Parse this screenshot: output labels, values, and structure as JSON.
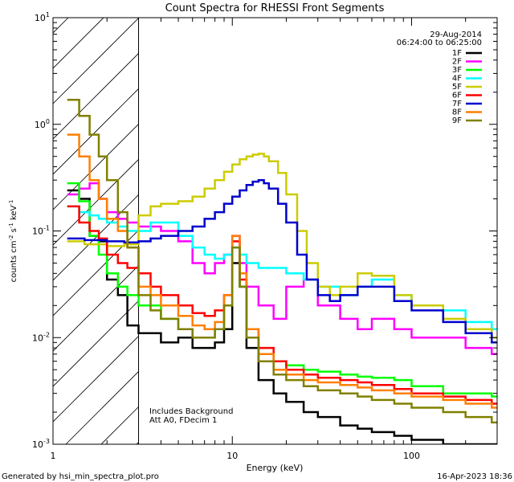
{
  "chart_data": {
    "type": "line",
    "title": "Count Spectra for RHESSI Front Segments",
    "xlabel": "Energy (keV)",
    "ylabel": "counts cm-2 s-1 keV-1",
    "xscale": "log",
    "yscale": "log",
    "xlim": [
      1,
      300
    ],
    "ylim": [
      0.001,
      10
    ],
    "x_ticks": [
      {
        "v": 1,
        "label": "1"
      },
      {
        "v": 10,
        "label": "10"
      },
      {
        "v": 100,
        "label": "100"
      }
    ],
    "y_ticks": [
      {
        "v": 0.001,
        "base": "10",
        "exp": "-3"
      },
      {
        "v": 0.01,
        "base": "10",
        "exp": "-2"
      },
      {
        "v": 0.1,
        "base": "10",
        "exp": "-1"
      },
      {
        "v": 1,
        "base": "10",
        "exp": "0"
      },
      {
        "v": 10,
        "base": "10",
        "exp": "1"
      }
    ],
    "date": "29-Aug-2014",
    "time_range": "06:24:00 to 06:25:00",
    "notes": [
      "Includes Background",
      "Att A0, FDecim 1"
    ],
    "excluded_region_keV": [
      1,
      3
    ],
    "series": [
      {
        "name": "1F",
        "color": "#000000",
        "points": [
          [
            1.2,
            0.24
          ],
          [
            1.4,
            0.2
          ],
          [
            1.6,
            0.09
          ],
          [
            1.8,
            0.08
          ],
          [
            2.0,
            0.035
          ],
          [
            2.3,
            0.025
          ],
          [
            2.6,
            0.013
          ],
          [
            3,
            0.011
          ],
          [
            4,
            0.009
          ],
          [
            5,
            0.01
          ],
          [
            6,
            0.008
          ],
          [
            7,
            0.008
          ],
          [
            8,
            0.009
          ],
          [
            9,
            0.012
          ],
          [
            10,
            0.05
          ],
          [
            11,
            0.03
          ],
          [
            12,
            0.008
          ],
          [
            14,
            0.004
          ],
          [
            17,
            0.003
          ],
          [
            20,
            0.0025
          ],
          [
            25,
            0.002
          ],
          [
            30,
            0.0018
          ],
          [
            40,
            0.0015
          ],
          [
            50,
            0.0014
          ],
          [
            60,
            0.0013
          ],
          [
            80,
            0.0012
          ],
          [
            100,
            0.0011
          ],
          [
            150,
            0.001
          ],
          [
            200,
            0.001
          ],
          [
            280,
            0.001
          ]
        ]
      },
      {
        "name": "2F",
        "color": "#ff00ff",
        "points": [
          [
            1.2,
            0.22
          ],
          [
            1.4,
            0.25
          ],
          [
            1.6,
            0.28
          ],
          [
            1.8,
            0.2
          ],
          [
            2.0,
            0.15
          ],
          [
            2.3,
            0.13
          ],
          [
            2.6,
            0.12
          ],
          [
            3,
            0.11
          ],
          [
            3.5,
            0.11
          ],
          [
            4,
            0.1
          ],
          [
            5,
            0.08
          ],
          [
            6,
            0.05
          ],
          [
            7,
            0.04
          ],
          [
            8,
            0.05
          ],
          [
            9,
            0.06
          ],
          [
            10,
            0.09
          ],
          [
            11,
            0.05
          ],
          [
            12,
            0.03
          ],
          [
            14,
            0.02
          ],
          [
            17,
            0.015
          ],
          [
            20,
            0.03
          ],
          [
            25,
            0.035
          ],
          [
            30,
            0.02
          ],
          [
            40,
            0.015
          ],
          [
            50,
            0.012
          ],
          [
            60,
            0.015
          ],
          [
            80,
            0.012
          ],
          [
            100,
            0.01
          ],
          [
            150,
            0.01
          ],
          [
            200,
            0.008
          ],
          [
            280,
            0.007
          ]
        ]
      },
      {
        "name": "3F",
        "color": "#00ff00",
        "points": [
          [
            1.2,
            0.28
          ],
          [
            1.4,
            0.19
          ],
          [
            1.6,
            0.09
          ],
          [
            1.8,
            0.06
          ],
          [
            2.0,
            0.04
          ],
          [
            2.3,
            0.03
          ],
          [
            2.6,
            0.025
          ],
          [
            3,
            0.02
          ],
          [
            4,
            0.015
          ],
          [
            5,
            0.012
          ],
          [
            6,
            0.01
          ],
          [
            7,
            0.01
          ],
          [
            8,
            0.012
          ],
          [
            9,
            0.02
          ],
          [
            10,
            0.07
          ],
          [
            11,
            0.03
          ],
          [
            12,
            0.01
          ],
          [
            14,
            0.007
          ],
          [
            17,
            0.006
          ],
          [
            20,
            0.0055
          ],
          [
            25,
            0.005
          ],
          [
            30,
            0.0048
          ],
          [
            40,
            0.0045
          ],
          [
            50,
            0.0043
          ],
          [
            60,
            0.0042
          ],
          [
            80,
            0.004
          ],
          [
            100,
            0.0035
          ],
          [
            150,
            0.003
          ],
          [
            200,
            0.003
          ],
          [
            280,
            0.0028
          ]
        ]
      },
      {
        "name": "4F",
        "color": "#00ffff",
        "points": [
          [
            1.2,
            0.17
          ],
          [
            1.4,
            0.15
          ],
          [
            1.6,
            0.14
          ],
          [
            1.8,
            0.13
          ],
          [
            2.0,
            0.12
          ],
          [
            2.3,
            0.11
          ],
          [
            2.6,
            0.1
          ],
          [
            3,
            0.1
          ],
          [
            3.5,
            0.12
          ],
          [
            4,
            0.12
          ],
          [
            5,
            0.09
          ],
          [
            6,
            0.07
          ],
          [
            7,
            0.06
          ],
          [
            8,
            0.055
          ],
          [
            9,
            0.06
          ],
          [
            10,
            0.07
          ],
          [
            11,
            0.06
          ],
          [
            12,
            0.05
          ],
          [
            14,
            0.045
          ],
          [
            17,
            0.045
          ],
          [
            20,
            0.04
          ],
          [
            25,
            0.035
          ],
          [
            30,
            0.03
          ],
          [
            40,
            0.025
          ],
          [
            50,
            0.03
          ],
          [
            60,
            0.035
          ],
          [
            80,
            0.025
          ],
          [
            100,
            0.02
          ],
          [
            150,
            0.018
          ],
          [
            200,
            0.014
          ],
          [
            280,
            0.012
          ]
        ]
      },
      {
        "name": "5F",
        "color": "#cccc00",
        "points": [
          [
            1.2,
            0.08
          ],
          [
            1.5,
            0.075
          ],
          [
            2.0,
            0.072
          ],
          [
            2.5,
            0.075
          ],
          [
            3,
            0.14
          ],
          [
            3.5,
            0.17
          ],
          [
            4,
            0.18
          ],
          [
            5,
            0.19
          ],
          [
            6,
            0.21
          ],
          [
            7,
            0.25
          ],
          [
            8,
            0.3
          ],
          [
            9,
            0.36
          ],
          [
            10,
            0.42
          ],
          [
            11,
            0.47
          ],
          [
            12,
            0.5
          ],
          [
            13,
            0.52
          ],
          [
            14,
            0.53
          ],
          [
            15,
            0.5
          ],
          [
            16,
            0.45
          ],
          [
            18,
            0.35
          ],
          [
            20,
            0.22
          ],
          [
            23,
            0.1
          ],
          [
            26,
            0.05
          ],
          [
            30,
            0.03
          ],
          [
            35,
            0.025
          ],
          [
            40,
            0.03
          ],
          [
            50,
            0.04
          ],
          [
            60,
            0.038
          ],
          [
            80,
            0.025
          ],
          [
            100,
            0.02
          ],
          [
            150,
            0.015
          ],
          [
            200,
            0.012
          ],
          [
            280,
            0.01
          ]
        ]
      },
      {
        "name": "6F",
        "color": "#ff0000",
        "points": [
          [
            1.2,
            0.17
          ],
          [
            1.4,
            0.12
          ],
          [
            1.6,
            0.1
          ],
          [
            1.8,
            0.085
          ],
          [
            2.0,
            0.06
          ],
          [
            2.3,
            0.05
          ],
          [
            2.6,
            0.045
          ],
          [
            3,
            0.04
          ],
          [
            3.5,
            0.03
          ],
          [
            4,
            0.025
          ],
          [
            5,
            0.02
          ],
          [
            6,
            0.017
          ],
          [
            7,
            0.016
          ],
          [
            8,
            0.018
          ],
          [
            9,
            0.025
          ],
          [
            10,
            0.08
          ],
          [
            11,
            0.035
          ],
          [
            12,
            0.012
          ],
          [
            14,
            0.008
          ],
          [
            17,
            0.006
          ],
          [
            20,
            0.005
          ],
          [
            25,
            0.0045
          ],
          [
            30,
            0.0042
          ],
          [
            40,
            0.004
          ],
          [
            50,
            0.0038
          ],
          [
            60,
            0.0036
          ],
          [
            80,
            0.0033
          ],
          [
            100,
            0.003
          ],
          [
            150,
            0.0028
          ],
          [
            200,
            0.0026
          ],
          [
            280,
            0.0024
          ]
        ]
      },
      {
        "name": "7F",
        "color": "#0000cc",
        "points": [
          [
            1.2,
            0.085
          ],
          [
            1.5,
            0.082
          ],
          [
            2.0,
            0.08
          ],
          [
            2.5,
            0.078
          ],
          [
            3,
            0.08
          ],
          [
            3.5,
            0.085
          ],
          [
            4,
            0.09
          ],
          [
            5,
            0.1
          ],
          [
            6,
            0.11
          ],
          [
            7,
            0.13
          ],
          [
            8,
            0.15
          ],
          [
            9,
            0.18
          ],
          [
            10,
            0.21
          ],
          [
            11,
            0.24
          ],
          [
            12,
            0.27
          ],
          [
            13,
            0.29
          ],
          [
            14,
            0.3
          ],
          [
            15,
            0.28
          ],
          [
            16,
            0.25
          ],
          [
            18,
            0.18
          ],
          [
            20,
            0.12
          ],
          [
            23,
            0.06
          ],
          [
            26,
            0.035
          ],
          [
            30,
            0.025
          ],
          [
            35,
            0.022
          ],
          [
            40,
            0.025
          ],
          [
            50,
            0.03
          ],
          [
            60,
            0.03
          ],
          [
            80,
            0.022
          ],
          [
            100,
            0.018
          ],
          [
            150,
            0.014
          ],
          [
            200,
            0.011
          ],
          [
            280,
            0.009
          ]
        ]
      },
      {
        "name": "8F",
        "color": "#ff7f00",
        "points": [
          [
            1.2,
            0.8
          ],
          [
            1.4,
            0.5
          ],
          [
            1.6,
            0.3
          ],
          [
            1.8,
            0.2
          ],
          [
            2.0,
            0.13
          ],
          [
            2.3,
            0.1
          ],
          [
            2.6,
            0.07
          ],
          [
            3,
            0.03
          ],
          [
            3.5,
            0.025
          ],
          [
            4,
            0.02
          ],
          [
            5,
            0.016
          ],
          [
            6,
            0.013
          ],
          [
            7,
            0.012
          ],
          [
            8,
            0.014
          ],
          [
            9,
            0.025
          ],
          [
            10,
            0.09
          ],
          [
            11,
            0.04
          ],
          [
            12,
            0.012
          ],
          [
            14,
            0.007
          ],
          [
            17,
            0.005
          ],
          [
            20,
            0.0045
          ],
          [
            25,
            0.004
          ],
          [
            30,
            0.0038
          ],
          [
            40,
            0.0036
          ],
          [
            50,
            0.0034
          ],
          [
            60,
            0.0032
          ],
          [
            80,
            0.003
          ],
          [
            100,
            0.0028
          ],
          [
            150,
            0.0026
          ],
          [
            200,
            0.0024
          ],
          [
            280,
            0.0022
          ]
        ]
      },
      {
        "name": "9F",
        "color": "#808000",
        "points": [
          [
            1.2,
            1.7
          ],
          [
            1.4,
            1.2
          ],
          [
            1.6,
            0.8
          ],
          [
            1.8,
            0.5
          ],
          [
            2.0,
            0.3
          ],
          [
            2.3,
            0.15
          ],
          [
            2.6,
            0.07
          ],
          [
            3,
            0.025
          ],
          [
            3.5,
            0.018
          ],
          [
            4,
            0.015
          ],
          [
            5,
            0.012
          ],
          [
            6,
            0.01
          ],
          [
            7,
            0.01
          ],
          [
            8,
            0.012
          ],
          [
            9,
            0.02
          ],
          [
            10,
            0.07
          ],
          [
            11,
            0.03
          ],
          [
            12,
            0.01
          ],
          [
            14,
            0.006
          ],
          [
            17,
            0.0045
          ],
          [
            20,
            0.004
          ],
          [
            25,
            0.0035
          ],
          [
            30,
            0.0032
          ],
          [
            40,
            0.003
          ],
          [
            50,
            0.0028
          ],
          [
            60,
            0.0026
          ],
          [
            80,
            0.0024
          ],
          [
            100,
            0.0022
          ],
          [
            150,
            0.002
          ],
          [
            200,
            0.0018
          ],
          [
            280,
            0.0016
          ]
        ]
      }
    ]
  },
  "footer": {
    "generated_by": "Generated by hsi_min_spectra_plot.pro",
    "timestamp": "16-Apr-2023 18:36"
  }
}
